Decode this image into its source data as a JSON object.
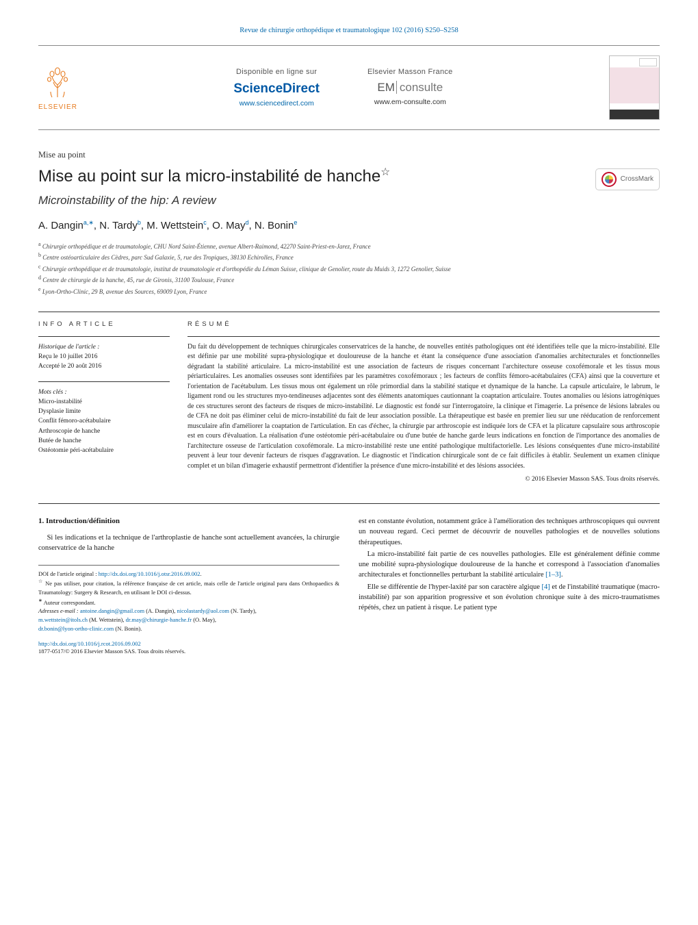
{
  "journal_header": "Revue de chirurgie orthopédique et traumatologique 102 (2016) S250–S258",
  "banner": {
    "elsevier_label": "ELSEVIER",
    "col1_label": "Disponible en ligne sur",
    "col1_brand": "ScienceDirect",
    "col1_url": "www.sciencedirect.com",
    "col2_label": "Elsevier Masson France",
    "col2_brand_em": "EM",
    "col2_brand_consulte": "consulte",
    "col2_url": "www.em-consulte.com"
  },
  "article": {
    "type": "Mise au point",
    "title": "Mise au point sur la micro-instabilité de hanche",
    "title_star": "☆",
    "subtitle": "Microinstability of the hip: A review",
    "crossmark": "CrossMark"
  },
  "authors_html": "A. Dangin",
  "authors": [
    {
      "name": "A. Dangin",
      "aff": "a,",
      "corr": "∗"
    },
    {
      "name": "N. Tardy",
      "aff": "b"
    },
    {
      "name": "M. Wettstein",
      "aff": "c"
    },
    {
      "name": "O. May",
      "aff": "d"
    },
    {
      "name": "N. Bonin",
      "aff": "e"
    }
  ],
  "affiliations": [
    {
      "sup": "a",
      "text": "Chirurgie orthopédique et de traumatologie, CHU Nord Saint-Étienne, avenue Albert-Raimond, 42270 Saint-Priest-en-Jarez, France"
    },
    {
      "sup": "b",
      "text": "Centre ostéoarticulaire des Cèdres, parc Sud Galaxie, 5, rue des Tropiques, 38130 Echirolles, France"
    },
    {
      "sup": "c",
      "text": "Chirurgie orthopédique et de traumatologie, institut de traumatologie et d'orthopédie du Léman Suisse, clinique de Genolier, route du Muids 3, 1272 Genolier, Suisse"
    },
    {
      "sup": "d",
      "text": "Centre de chirurgie de la hanche, 45, rue de Gironis, 31100 Toulouse, France"
    },
    {
      "sup": "e",
      "text": "Lyon-Ortho-Clinic, 29 B, avenue des Sources, 69009 Lyon, France"
    }
  ],
  "info": {
    "label": "INFO ARTICLE",
    "history_hdr": "Historique de l'article :",
    "received": "Reçu le 10 juillet 2016",
    "accepted": "Accepté le 20 août 2016",
    "keywords_hdr": "Mots clés :",
    "keywords": [
      "Micro-instabilité",
      "Dysplasie limite",
      "Conflit fémoro-acétabulaire",
      "Arthroscopie de hanche",
      "Butée de hanche",
      "Ostéotomie péri-acétabulaire"
    ]
  },
  "abstract": {
    "label": "RÉSUMÉ",
    "text": "Du fait du développement de techniques chirurgicales conservatrices de la hanche, de nouvelles entités pathologiques ont été identifiées telle que la micro-instabilité. Elle est définie par une mobilité supra-physiologique et douloureuse de la hanche et étant la conséquence d'une association d'anomalies architecturales et fonctionnelles dégradant la stabilité articulaire. La micro-instabilité est une association de facteurs de risques concernant l'architecture osseuse coxofémorale et les tissus mous périarticulaires. Les anomalies osseuses sont identifiées par les paramètres coxofémoraux ; les facteurs de conflits fémoro-acétabulaires (CFA) ainsi que la couverture et l'orientation de l'acétabulum. Les tissus mous ont également un rôle primordial dans la stabilité statique et dynamique de la hanche. La capsule articulaire, le labrum, le ligament rond ou les structures myo-tendineuses adjacentes sont des éléments anatomiques cautionnant la coaptation articulaire. Toutes anomalies ou lésions iatrogéniques de ces structures seront des facteurs de risques de micro-instabilité. Le diagnostic est fondé sur l'interrogatoire, la clinique et l'imagerie. La présence de lésions labrales ou de CFA ne doit pas éliminer celui de micro-instabilité du fait de leur association possible. La thérapeutique est basée en premier lieu sur une rééducation de renforcement musculaire afin d'améliorer la coaptation de l'articulation. En cas d'échec, la chirurgie par arthroscopie est indiquée lors de CFA et la plicature capsulaire sous arthroscopie est en cours d'évaluation. La réalisation d'une ostéotomie péri-acétabulaire ou d'une butée de hanche garde leurs indications en fonction de l'importance des anomalies de l'architecture osseuse de l'articulation coxofémorale. La micro-instabilité reste une entité pathologique multifactorielle. Les lésions conséquentes d'une micro-instabilité peuvent à leur tour devenir facteurs de risques d'aggravation. Le diagnostic et l'indication chirurgicale sont de ce fait difficiles à établir. Seulement un examen clinique complet et un bilan d'imagerie exhaustif permettront d'identifier la présence d'une micro-instabilité et des lésions associées.",
    "copyright": "© 2016 Elsevier Masson SAS. Tous droits réservés."
  },
  "body": {
    "heading1": "1.  Introduction/définition",
    "p1": "Si les indications et la technique de l'arthroplastie de hanche sont actuellement avancées, la chirurgie conservatrice de la hanche",
    "p2": "est en constante évolution, notamment grâce à l'amélioration des techniques arthroscopiques qui ouvrent un nouveau regard. Ceci permet de découvrir de nouvelles pathologies et de nouvelles solutions thérapeutiques.",
    "p3a": "La micro-instabilité fait partie de ces nouvelles pathologies. Elle est généralement définie comme une mobilité supra-physiologique douloureuse de la hanche et correspond à l'association d'anomalies architecturales et fonctionnelles perturbant la stabilité articulaire ",
    "p3_ref": "[1–3]",
    "p3b": ".",
    "p4a": "Elle se différentie de l'hyper-laxité par son caractère algique ",
    "p4_ref": "[4]",
    "p4b": " et de l'instabilité traumatique (macro-instabilité) par son apparition progressive et son évolution chronique suite à des micro-traumatismes répétés, chez un patient à risque. Le patient type"
  },
  "footnotes": {
    "doi_orig_label": "DOI de l'article original : ",
    "doi_orig": "http://dx.doi.org/10.1016/j.otsr.2016.09.002",
    "star_note": "Ne pas utiliser, pour citation, la référence française de cet article, mais celle de l'article original paru dans Orthopaedics & Traumatology: Surgery & Research, en utilisant le DOI ci-dessus.",
    "corr_note": "Auteur correspondant.",
    "emails_label": "Adresses e-mail : ",
    "emails": [
      {
        "addr": "antoine.dangin@gmail.com",
        "who": "(A. Dangin)"
      },
      {
        "addr": "nicolastardy@aol.com",
        "who": "(N. Tardy)"
      },
      {
        "addr": "m.wettstein@itols.ch",
        "who": "(M. Wettstein)"
      },
      {
        "addr": "dr.may@chirurgie-hanche.fr",
        "who": "(O. May)"
      },
      {
        "addr": "dr.bonin@lyon-ortho-clinic.com",
        "who": "(N. Bonin)"
      }
    ],
    "doi": "http://dx.doi.org/10.1016/j.rcot.2016.09.002",
    "issn_copy": "1877-0517/© 2016 Elsevier Masson SAS. Tous droits réservés."
  },
  "colors": {
    "link": "#0066aa",
    "elsevier_orange": "#e77b1f",
    "text": "#1a1a1a"
  }
}
